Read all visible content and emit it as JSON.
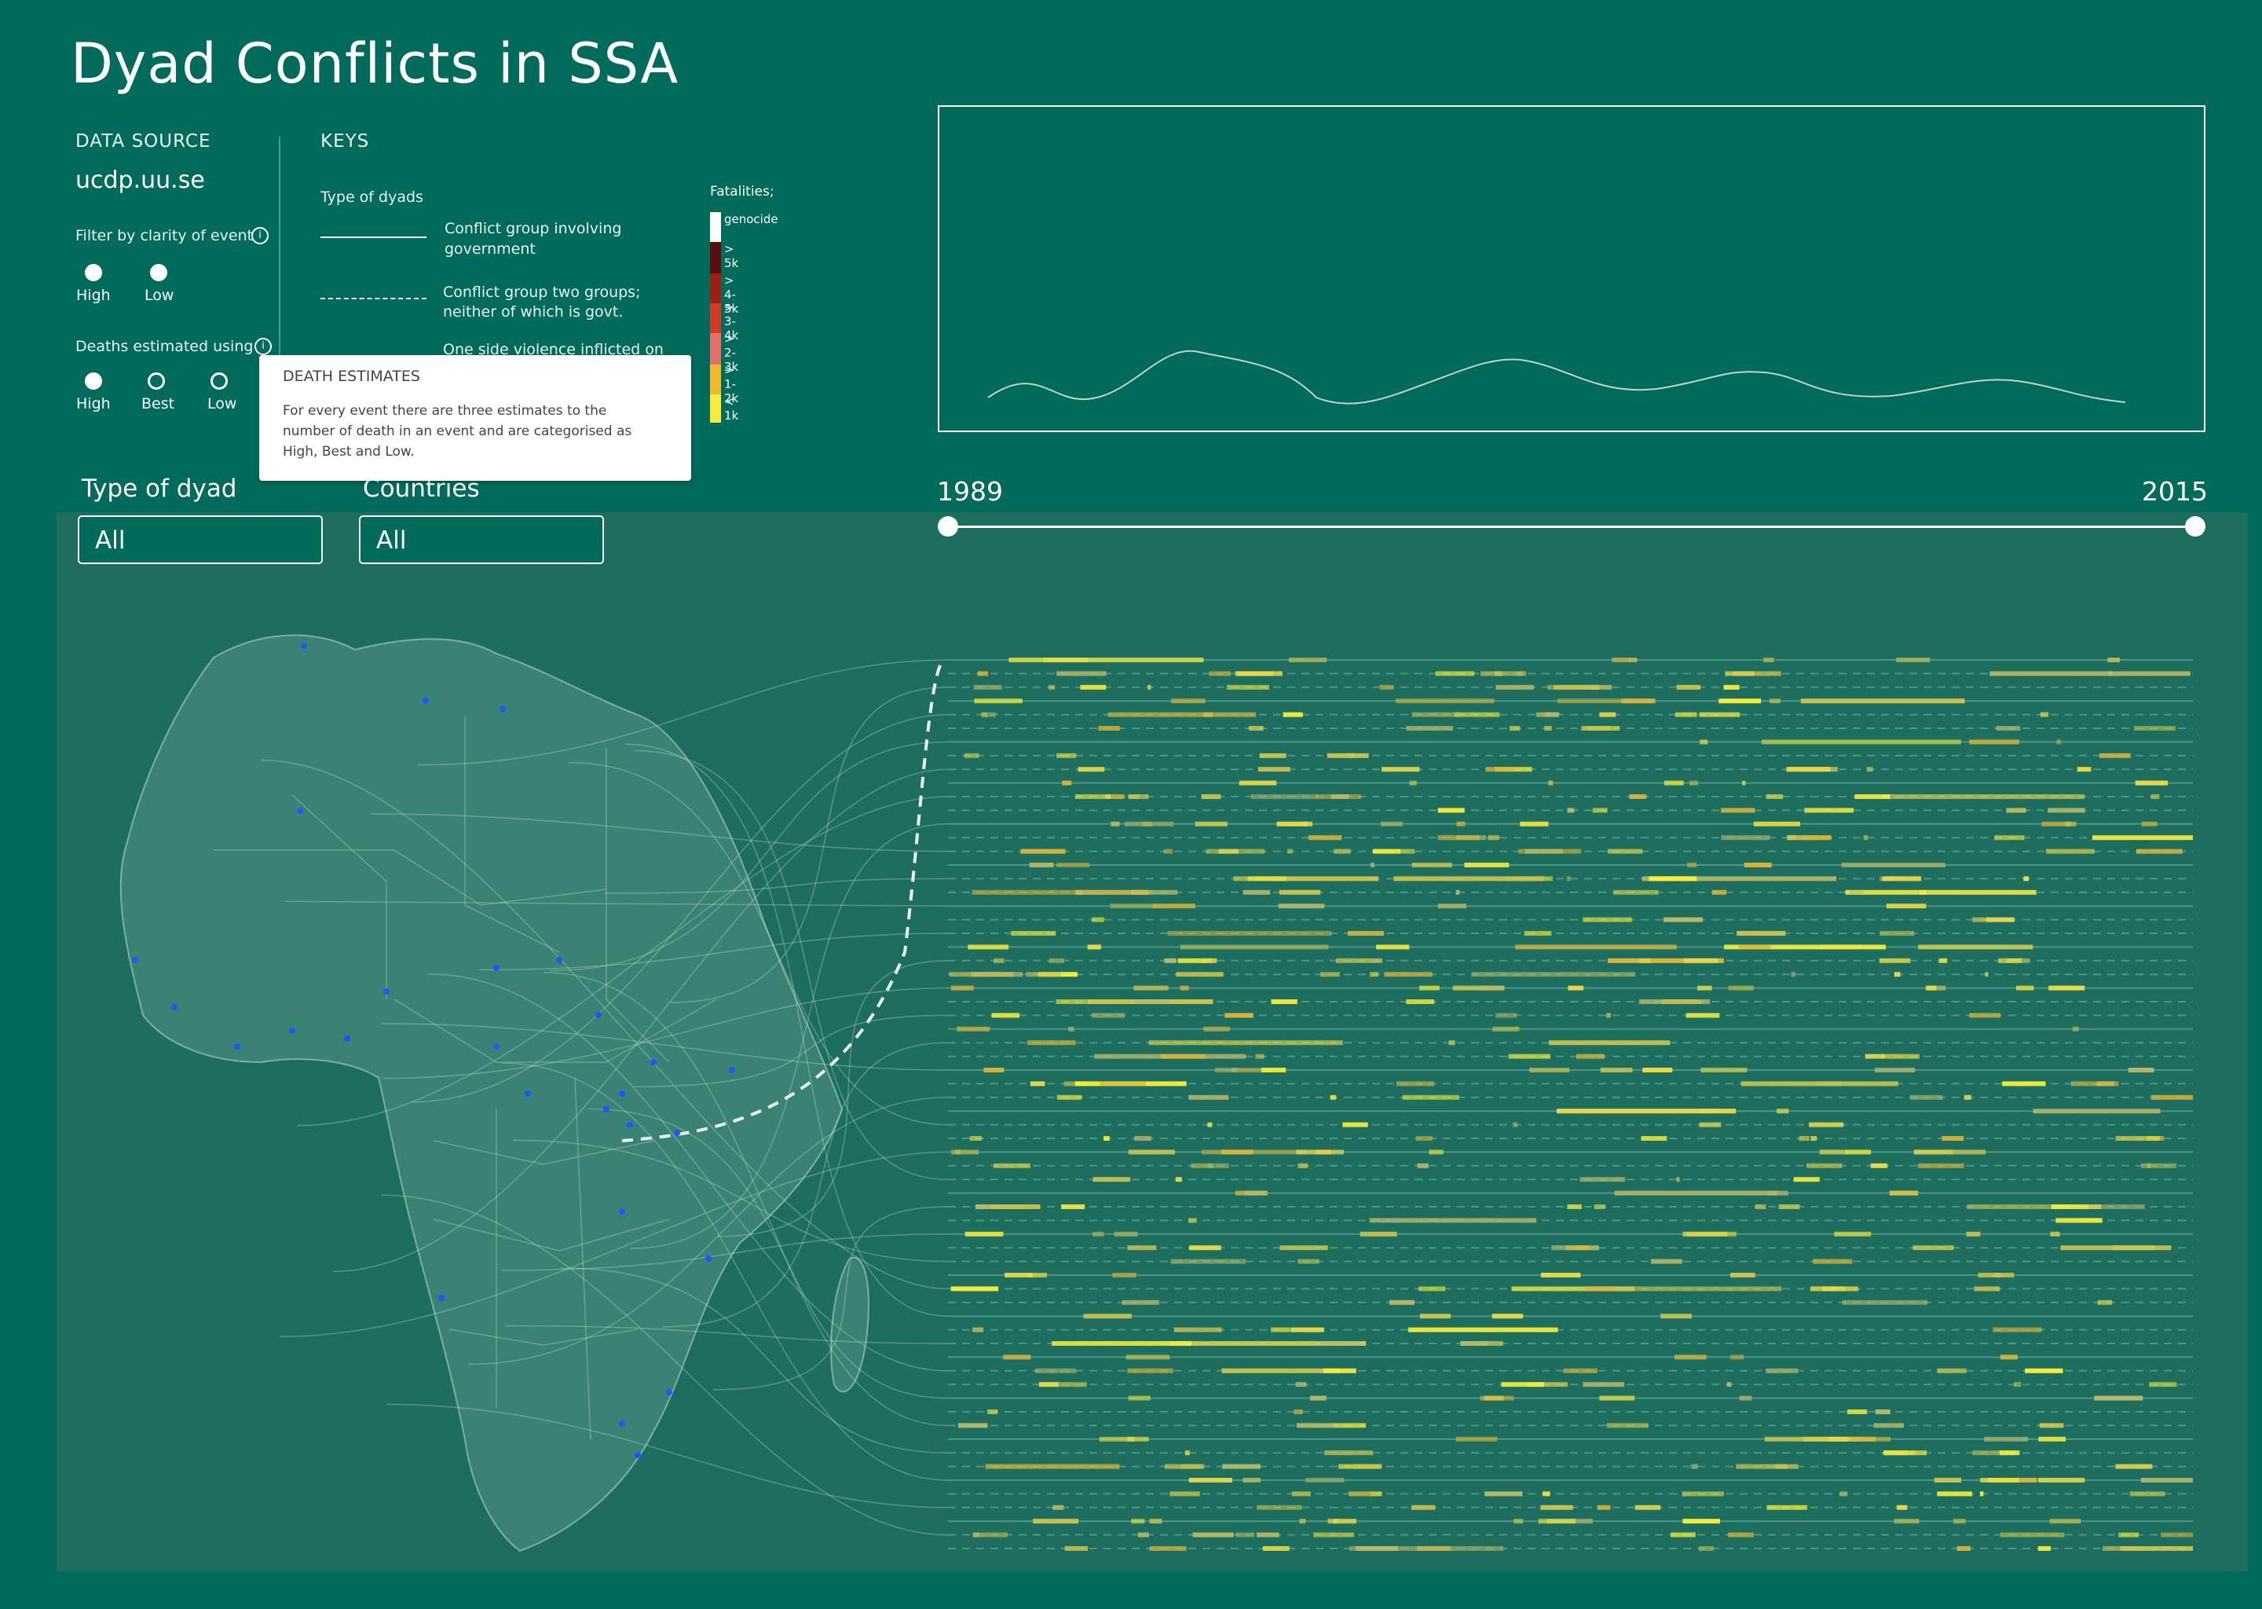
{
  "title": "Dyad Conflicts in SSA",
  "data_source": {
    "label": "DATA SOURCE",
    "value": "ucdp.uu.se"
  },
  "filter_clarity": {
    "label": "Filter by clarity of event",
    "options": [
      {
        "label": "High",
        "selected": true
      },
      {
        "label": "Low",
        "selected": true
      }
    ]
  },
  "deaths_estimated": {
    "label": "Deaths estimated using",
    "options": [
      {
        "label": "High",
        "selected": true
      },
      {
        "label": "Best",
        "selected": false
      },
      {
        "label": "Low",
        "selected": false
      }
    ]
  },
  "keys": {
    "label": "KEYS",
    "type_label": "Type of dyads",
    "items": [
      {
        "line": "solid",
        "text1": "Conflict group involving",
        "text2": "government"
      },
      {
        "line": "dashed",
        "text1": "Conflict group two groups;",
        "text2": "neither of which is govt."
      },
      {
        "line": "none",
        "text1": "One side violence inflicted on",
        "text2": ""
      }
    ]
  },
  "fatalities_legend": {
    "label": "Fatalities;",
    "items": [
      {
        "label": "genocide",
        "color": "#ffffff"
      },
      {
        "label": "> 5k",
        "color": "#5a0e0e"
      },
      {
        "label": "> 4-5k",
        "color": "#9c1f14"
      },
      {
        "label": "> 3-4k",
        "color": "#cf3b26"
      },
      {
        "label": "> 2-3k",
        "color": "#e2706a"
      },
      {
        "label": "> 1-2k",
        "color": "#f1b92a"
      },
      {
        "label": "< 1k",
        "color": "#f6ec3b"
      }
    ]
  },
  "tooltip": {
    "title": "DEATH ESTIMATES",
    "line1": "For every event there are three estimates to the",
    "line2": "number of death in an event and are categorised as",
    "line3": "High, Best and Low."
  },
  "filters": {
    "dyad_label": "Type of dyad",
    "dyad_value": "All",
    "countries_label": "Countries",
    "countries_value": "All"
  },
  "timeline": {
    "start_year": "1989",
    "end_year": "2015"
  },
  "colors": {
    "background": "#006b5b",
    "panel": "#1d6e5e",
    "accent": "#f6ec3b"
  }
}
